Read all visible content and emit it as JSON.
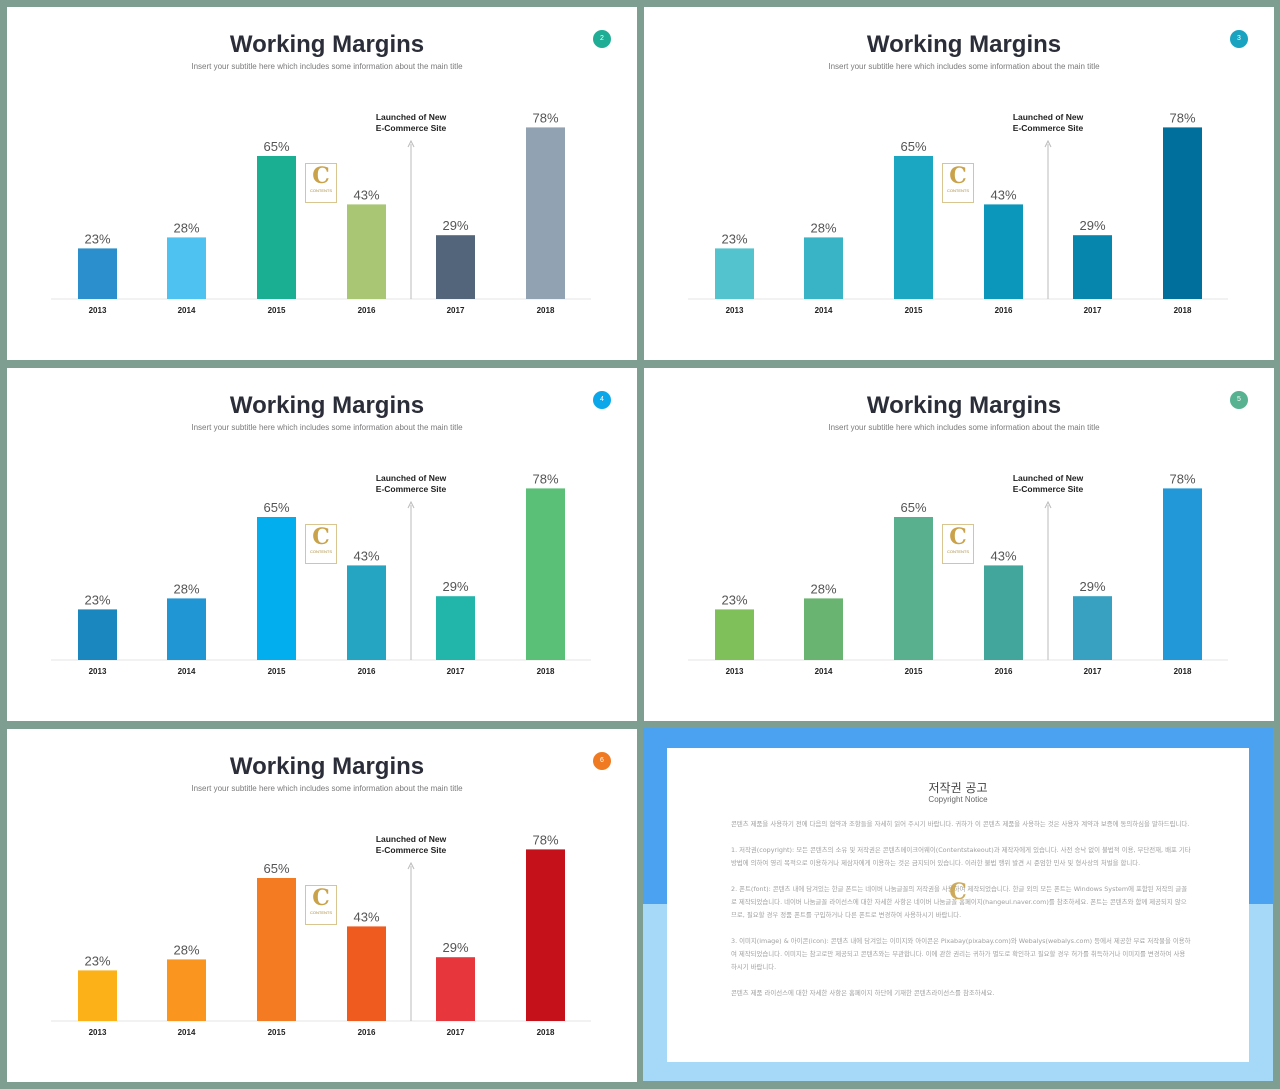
{
  "slides": [
    {
      "page": "2",
      "title": "Working Margins",
      "subtitle": "Insert your subtitle here which includes some information about the main title",
      "badge_color": "#1fae95",
      "colors": [
        "#2a8fcc",
        "#4ec3f2",
        "#1aae92",
        "#a9c674",
        "#52657a",
        "#91a3b3"
      ]
    },
    {
      "page": "3",
      "title": "Working Margins",
      "subtitle": "Insert your subtitle here which includes some information about the main title",
      "badge_color": "#1aa3c1",
      "colors": [
        "#53c3cd",
        "#39b3c6",
        "#1ba6c1",
        "#0b97bb",
        "#0685ad",
        "#006f9c"
      ]
    },
    {
      "page": "4",
      "title": "Working Margins",
      "subtitle": "Insert your subtitle here which includes some information about the main title",
      "badge_color": "#0aa8ea",
      "colors": [
        "#1b87bf",
        "#2196d5",
        "#03aeef",
        "#25a5c1",
        "#22b6ab",
        "#5bc077"
      ]
    },
    {
      "page": "5",
      "title": "Working Margins",
      "subtitle": "Insert your subtitle here which includes some information about the main title",
      "badge_color": "#56b290",
      "colors": [
        "#80c05b",
        "#69b470",
        "#58b08e",
        "#42a69c",
        "#38a0c0",
        "#2298d8"
      ]
    },
    {
      "page": "6",
      "title": "Working Margins",
      "subtitle": "Insert your subtitle here which includes some information about the main title",
      "badge_color": "#f07a22",
      "colors": [
        "#fbb117",
        "#fa961f",
        "#f57b22",
        "#ef5a1f",
        "#e7373d",
        "#c4111a"
      ]
    }
  ],
  "chart_data": {
    "type": "bar",
    "categories": [
      "2013",
      "2014",
      "2015",
      "2016",
      "2017",
      "2018"
    ],
    "values": [
      23,
      28,
      65,
      43,
      29,
      78
    ],
    "value_labels": [
      "23%",
      "28%",
      "65%",
      "43%",
      "29%",
      "78%"
    ],
    "ylim": [
      0,
      100
    ],
    "annotation": {
      "line1": "Launched of New",
      "line2": "E-Commerce Site",
      "between": [
        "2016",
        "2017"
      ]
    }
  },
  "logo": {
    "letter": "C",
    "text": "CONTENTS"
  },
  "notice": {
    "title": "저작권 공고",
    "subtitle": "Copyright Notice",
    "paragraphs": [
      "콘텐츠 제품을 사용하기 전에 다음의 협약과 조항들을 자세히 읽어 주시기 바랍니다. 귀하가 이 콘텐츠 제품을 사용하는 것은 사용자 계약과 보증에 동의하심을 말하드립니다.",
      "1. 저작권(copyright): 모든 콘텐츠의 소유 및 저작권은 콘텐츠메이크어웨이(Contentstakeout)과 제작자에게 있습니다. 사전 승낙 없이 불법적 이용, 무단전재, 배포 기타 방법에 의하여 영리 목적으로 이용하거나 제삼자에게 이용하는 것은 금지되어 있습니다. 이러한 불법 행위 발견 시 준엄한 민사 및 형사상의 처벌을 합니다.",
      "2. 폰트(font): 콘텐츠 내에 담겨있는 한글 폰트는 네이버 나눔글꼴의 저작권을 사용하여 제작되었습니다. 한글 외의 모든 폰트는 Windows System에 포함된 저작의 글꼴로 제작되었습니다. 네이버 나눔글꼴 라이선스에 대한 자세한 사항은 네이버 나눔글꼴 홈페이지(hangeul.naver.com)를 참조하세요. 폰트는 콘텐츠와 함께 제공되지 않으므로, 필요할 경우 정품 폰트를 구입하거나 다른 폰트로 변경하여 사용하시기 바랍니다.",
      "3. 이미지(image) & 아이콘(icon): 콘텐츠 내에 담겨있는 이미지와 아이콘은 Pixabay(pixabay.com)와 Webalys(webalys.com) 등에서 제공한 무료 저작물을 이용하여 제작되었습니다. 이미지는 참고로만 제공되고 콘텐츠와는 무관합니다. 이에 관한 권리는 귀하가 별도로 확인하고 필요할 경우 허가를 취득하거나 이미지를 변경하여 사용하시기 바랍니다.",
      "콘텐츠 제품 라이선스에 대한 자세한 사항은 홈페이지 하단에 기재한 콘텐츠라이선스를 참조하세요."
    ]
  }
}
